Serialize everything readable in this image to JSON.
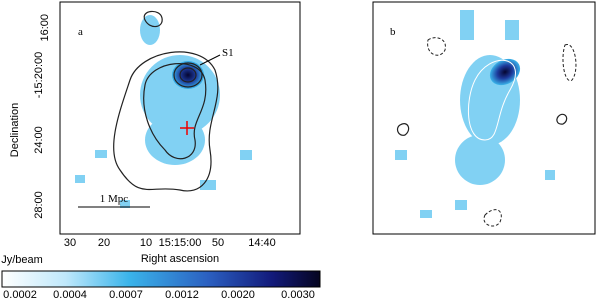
{
  "panels": [
    {
      "label": "a",
      "annotations": [
        "S1",
        "1 Mpc"
      ]
    },
    {
      "label": "b"
    }
  ],
  "axes": {
    "x_label": "Right ascension",
    "y_label": "Declination",
    "x_ticks": [
      "30",
      "20",
      "10",
      "15:15:00",
      "50",
      "14:40"
    ],
    "y_ticks": [
      "16:00",
      "-15:20:00",
      "24:00",
      "28:00"
    ]
  },
  "colorbar": {
    "unit": "Jy/beam",
    "ticks": [
      "0.0002",
      "0.0004",
      "0.0007",
      "0.0012",
      "0.0020",
      "0.0030"
    ]
  }
}
